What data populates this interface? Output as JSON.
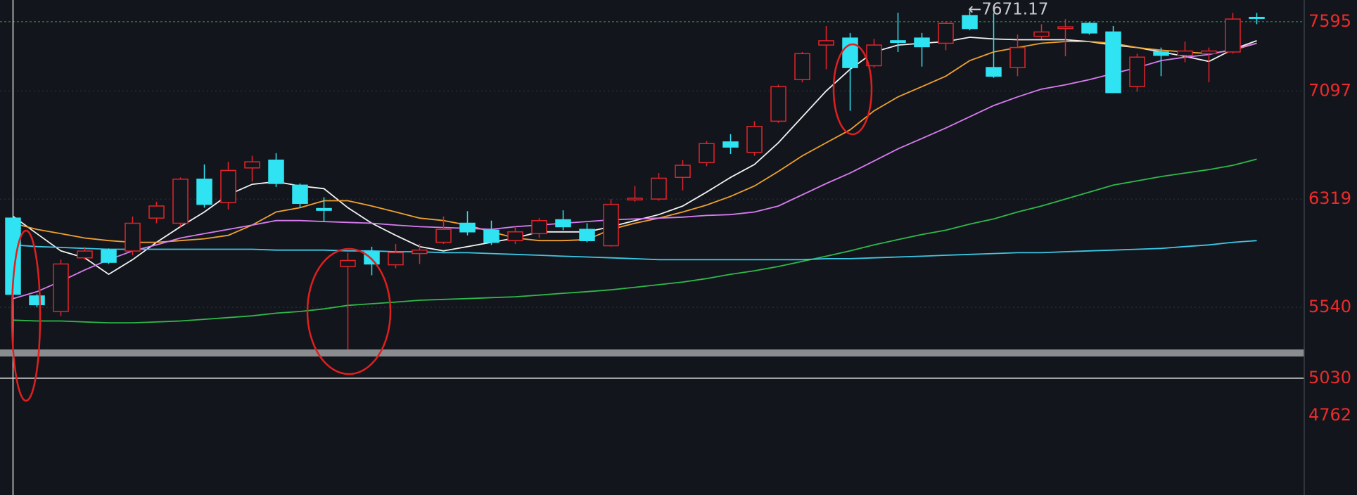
{
  "chart_data": {
    "type": "candlestick",
    "annotation": "←7671.17",
    "up_color": "#e3232a",
    "down_color": "#2fe3f2",
    "ylim": [
      4190,
      7751
    ],
    "yticks": [
      7595,
      7097,
      6319,
      5540,
      5030,
      4762
    ],
    "grid": true,
    "open": [
      6182,
      5622,
      5510,
      5896,
      5952,
      5945,
      6182,
      6145,
      6462,
      6294,
      6543,
      6599,
      6419,
      6251,
      5834,
      5940,
      5846,
      5927,
      6008,
      6145,
      6095,
      6020,
      6070,
      6170,
      6101,
      5983,
      6313,
      6319,
      6475,
      6581,
      6730,
      6655,
      6879,
      7178,
      7427,
      7477,
      7278,
      7458,
      7477,
      7440,
      7639,
      7265,
      7265,
      7490,
      7546,
      7583,
      7521,
      7128,
      7377,
      7353,
      7365,
      7377,
      7626
    ],
    "high": [
      6194,
      5634,
      5883,
      5976,
      5964,
      6194,
      6300,
      6474,
      6568,
      6587,
      6630,
      6649,
      6431,
      6332,
      5933,
      5976,
      5996,
      5996,
      6194,
      6232,
      6164,
      6120,
      6182,
      6238,
      6145,
      6319,
      6413,
      6506,
      6599,
      6736,
      6786,
      6879,
      7141,
      7377,
      7564,
      7514,
      7471,
      7660,
      7514,
      7595,
      7671,
      7658,
      7502,
      7577,
      7614,
      7595,
      7564,
      7365,
      7409,
      7452,
      7409,
      7658,
      7658
    ],
    "low": [
      5603,
      5541,
      5478,
      5883,
      5852,
      5914,
      6145,
      6120,
      6257,
      6245,
      6444,
      6406,
      6257,
      6157,
      5236,
      5771,
      5821,
      5852,
      5996,
      6058,
      5989,
      5996,
      6039,
      6095,
      6008,
      5976,
      6300,
      6307,
      6381,
      6556,
      6643,
      6630,
      6867,
      7160,
      7253,
      6954,
      7265,
      7377,
      7272,
      7390,
      7533,
      7191,
      7203,
      7471,
      7346,
      7502,
      7085,
      7091,
      7203,
      7303,
      7160,
      7365,
      7577
    ],
    "close": [
      5634,
      5559,
      5852,
      5945,
      5864,
      6145,
      6269,
      6462,
      6281,
      6525,
      6587,
      6431,
      6288,
      6238,
      5877,
      5852,
      5933,
      5952,
      6101,
      6083,
      6008,
      6083,
      6164,
      6120,
      6020,
      6281,
      6325,
      6469,
      6562,
      6718,
      6693,
      6842,
      7128,
      7365,
      7458,
      7265,
      7427,
      7446,
      7415,
      7583,
      7546,
      7203,
      7409,
      7521,
      7558,
      7514,
      7085,
      7340,
      7353,
      7384,
      7384,
      7614,
      7620
    ],
    "series": [
      {
        "color": "#f2f2f2",
        "values": [
          6195,
          6070,
          5946,
          5896,
          5778,
          5883,
          6008,
          6120,
          6226,
          6350,
          6425,
          6444,
          6413,
          6394,
          6257,
          6145,
          6058,
          5977,
          5946,
          5977,
          6008,
          6039,
          6083,
          6083,
          6083,
          6120,
          6164,
          6207,
          6269,
          6369,
          6475,
          6568,
          6724,
          6911,
          7097,
          7253,
          7377,
          7427,
          7440,
          7452,
          7483,
          7471,
          7465,
          7465,
          7465,
          7452,
          7427,
          7409,
          7377,
          7346,
          7309,
          7396,
          7458
        ]
      },
      {
        "color": "#f0a030",
        "values": [
          6145,
          6101,
          6070,
          6039,
          6020,
          6008,
          6008,
          6020,
          6033,
          6058,
          6132,
          6226,
          6257,
          6307,
          6307,
          6269,
          6226,
          6182,
          6164,
          6132,
          6083,
          6039,
          6020,
          6020,
          6027,
          6101,
          6145,
          6182,
          6226,
          6276,
          6338,
          6413,
          6518,
          6630,
          6724,
          6817,
          6954,
          7054,
          7128,
          7203,
          7315,
          7377,
          7409,
          7440,
          7452,
          7452,
          7440,
          7409,
          7390,
          7377,
          7365,
          7390,
          7440
        ]
      },
      {
        "color": "#d87cf0",
        "values": [
          5603,
          5653,
          5728,
          5809,
          5883,
          5946,
          5989,
          6039,
          6070,
          6101,
          6132,
          6164,
          6164,
          6157,
          6151,
          6145,
          6132,
          6120,
          6114,
          6108,
          6101,
          6120,
          6132,
          6145,
          6157,
          6170,
          6176,
          6182,
          6189,
          6201,
          6207,
          6226,
          6269,
          6350,
          6431,
          6506,
          6593,
          6680,
          6755,
          6830,
          6911,
          6992,
          7054,
          7110,
          7141,
          7178,
          7222,
          7265,
          7315,
          7340,
          7359,
          7396,
          7440
        ]
      },
      {
        "color": "#2fb84a",
        "values": [
          5448,
          5442,
          5442,
          5435,
          5429,
          5429,
          5435,
          5442,
          5454,
          5466,
          5479,
          5498,
          5510,
          5529,
          5554,
          5566,
          5578,
          5591,
          5597,
          5603,
          5610,
          5616,
          5628,
          5641,
          5653,
          5666,
          5684,
          5703,
          5722,
          5747,
          5778,
          5803,
          5834,
          5871,
          5908,
          5946,
          5989,
          6027,
          6064,
          6095,
          6139,
          6176,
          6226,
          6269,
          6319,
          6369,
          6419,
          6450,
          6481,
          6506,
          6531,
          6562,
          6606
        ]
      },
      {
        "color": "#3cc8e6",
        "values": [
          5989,
          5977,
          5971,
          5964,
          5958,
          5958,
          5958,
          5958,
          5958,
          5958,
          5958,
          5952,
          5952,
          5952,
          5946,
          5946,
          5940,
          5940,
          5933,
          5933,
          5927,
          5921,
          5915,
          5908,
          5902,
          5896,
          5890,
          5883,
          5883,
          5883,
          5883,
          5883,
          5883,
          5883,
          5890,
          5890,
          5896,
          5902,
          5908,
          5915,
          5921,
          5927,
          5933,
          5933,
          5940,
          5946,
          5952,
          5958,
          5964,
          5977,
          5989,
          6008,
          6020
        ]
      }
    ]
  }
}
